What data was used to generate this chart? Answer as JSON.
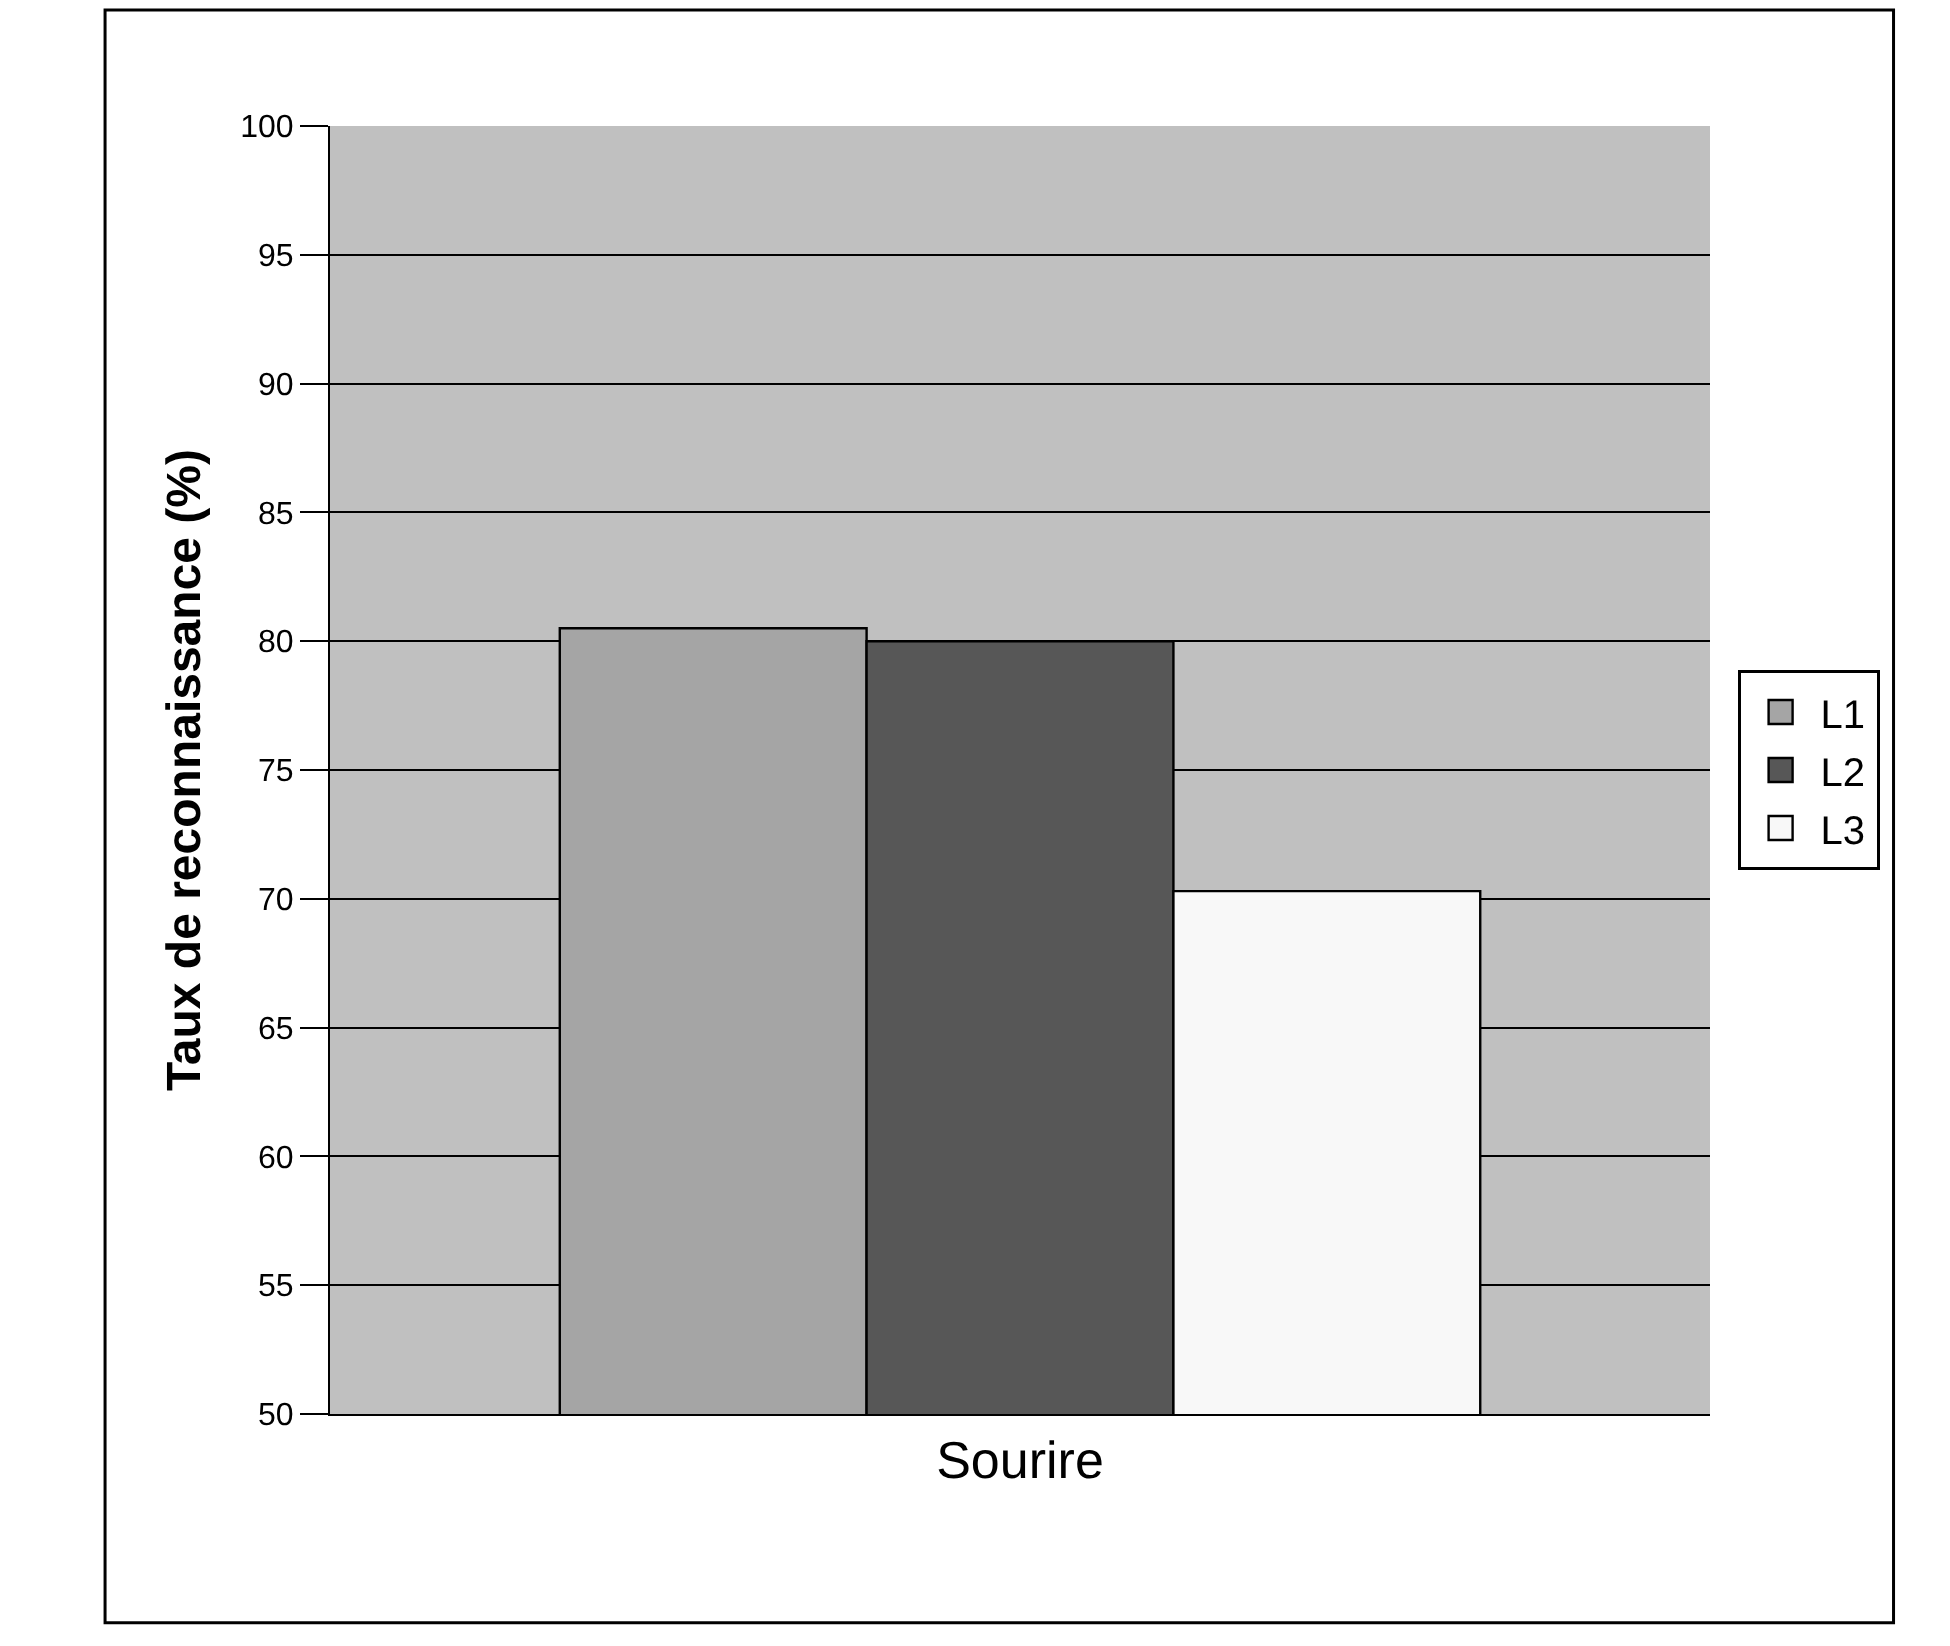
{
  "chart_data": {
    "type": "bar",
    "ylabel": "Taux de reconnaissance (%)",
    "categories": [
      "Sourire"
    ],
    "series": [
      {
        "name": "L1",
        "color": "#a5a5a5",
        "values": [
          80.5
        ]
      },
      {
        "name": "L2",
        "color": "#575757",
        "values": [
          80
        ]
      },
      {
        "name": "L3",
        "color": "#f8f8f8",
        "values": [
          70.3
        ]
      }
    ],
    "ylim": [
      50,
      100
    ],
    "yticks": [
      50,
      55,
      60,
      65,
      70,
      75,
      80,
      85,
      90,
      95,
      100
    ],
    "grid": "y",
    "legend": "right"
  }
}
